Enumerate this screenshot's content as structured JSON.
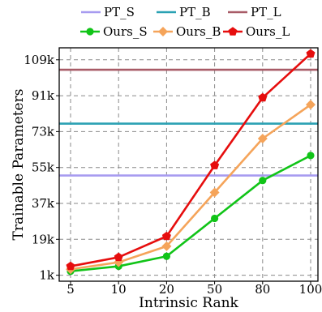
{
  "chart_data": {
    "type": "line",
    "xlabel": "Intrinsic Rank",
    "ylabel": "Trainable Parameters",
    "x_categories": [
      "5",
      "10",
      "20",
      "50",
      "80",
      "100"
    ],
    "y_tick_labels": [
      "1k",
      "19k",
      "37k",
      "55k",
      "73k",
      "91k",
      "109k"
    ],
    "y_ticks": [
      1,
      19,
      37,
      55,
      73,
      91,
      109
    ],
    "ylim": [
      -2,
      115
    ],
    "grid": true,
    "legend_placement": "top",
    "reference_lines": [
      {
        "name": "PT_S",
        "value": 51,
        "color": "#a79bf0"
      },
      {
        "name": "PT_B",
        "value": 77,
        "color": "#2aa1b3"
      },
      {
        "name": "PT_L",
        "value": 104,
        "color": "#a85b67"
      }
    ],
    "series": [
      {
        "name": "Ours_S",
        "color": "#11c418",
        "marker": "circle",
        "values": [
          3,
          5.5,
          10.5,
          29.5,
          48.5,
          61
        ]
      },
      {
        "name": "Ours_B",
        "color": "#f5a45a",
        "marker": "diamond",
        "values": [
          4,
          7.5,
          15.5,
          42.5,
          69.5,
          86.5
        ]
      },
      {
        "name": "Ours_L",
        "color": "#e60d0d",
        "marker": "pentagon",
        "values": [
          5.5,
          10,
          20.5,
          56,
          90,
          112
        ]
      }
    ]
  }
}
